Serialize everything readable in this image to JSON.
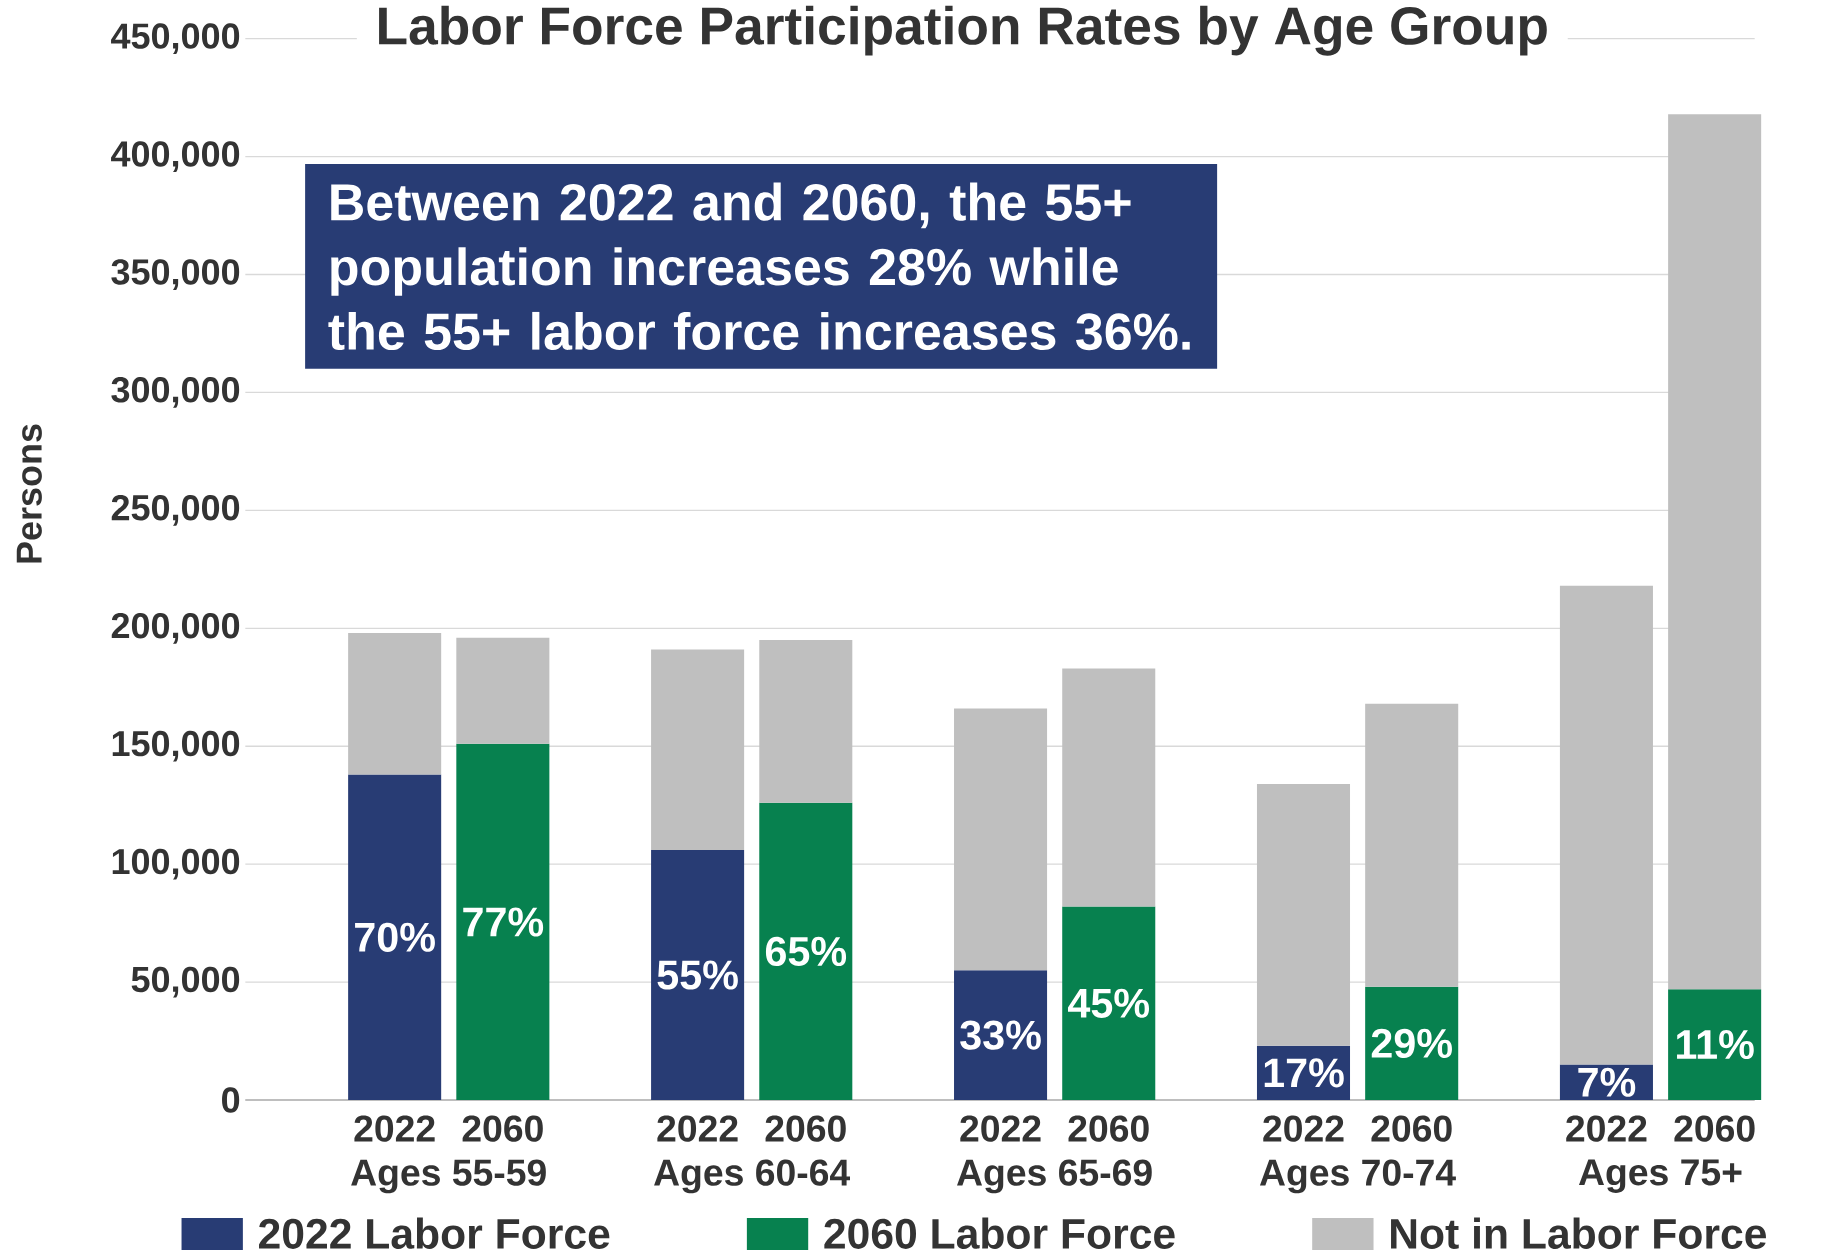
{
  "chart_data": {
    "type": "bar",
    "title": "Labor Force Participation Rates by Age Group",
    "ylabel": "Persons",
    "categories": [
      "2022",
      "2060",
      "2022",
      "2060",
      "2022",
      "2060",
      "2022",
      "2060",
      "2022",
      "2060"
    ],
    "series": [
      {
        "name": "2022 Labor Force",
        "color": "#283c74",
        "values": [
          138000,
          null,
          106000,
          null,
          55000,
          null,
          23000,
          null,
          15000,
          null
        ]
      },
      {
        "name": "2060 Labor Force",
        "color": "#07814f",
        "values": [
          null,
          151000,
          null,
          126000,
          null,
          82000,
          null,
          48000,
          null,
          47000
        ]
      },
      {
        "name": "Not in Labor Force",
        "color": "#bfbfbf",
        "values": [
          60000,
          45000,
          85000,
          69000,
          111000,
          101000,
          111000,
          120000,
          203000,
          371000
        ]
      }
    ],
    "stacked": true,
    "ylim": [
      0,
      450000
    ],
    "yticks": [
      {
        "value": 0,
        "label": "0"
      },
      {
        "value": 50000,
        "label": "50,000"
      },
      {
        "value": 100000,
        "label": "100,000"
      },
      {
        "value": 150000,
        "label": "150,000"
      },
      {
        "value": 200000,
        "label": "200,000"
      },
      {
        "value": 250000,
        "label": "250,000"
      },
      {
        "value": 300000,
        "label": "300,000"
      },
      {
        "value": 350000,
        "label": "350,000"
      },
      {
        "value": 400000,
        "label": "400,000"
      },
      {
        "value": 450000,
        "label": "450,000"
      }
    ],
    "grid": "y",
    "legend": "bottom",
    "annotations": [
      "Between 2022 and 2060, the 55+ population increases 28% while the 55+ labor force increases 36%.",
      "Ages 55-59",
      "Ages 60-64",
      "Ages 65-69",
      "Ages 70-74",
      "Ages 75+",
      "70%",
      "77%",
      "55%",
      "65%",
      "33%",
      "45%",
      "17%",
      "29%",
      "7%",
      "11%"
    ]
  }
}
